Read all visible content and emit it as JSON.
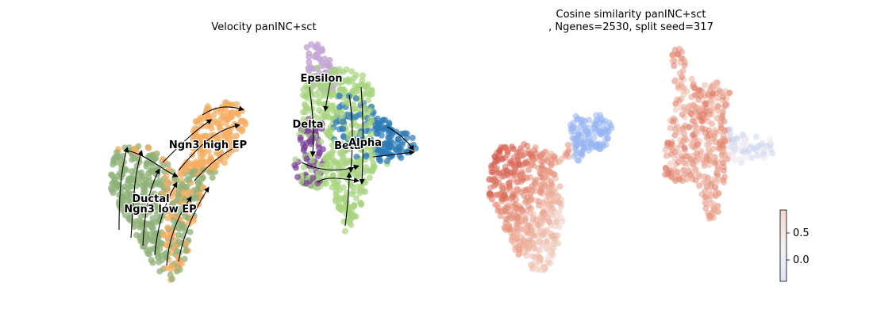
{
  "panels": {
    "left": {
      "title": "Velocity panINC+sct"
    },
    "right": {
      "title_line1": "Cosine similarity panINC+sct",
      "title_line2": ", Ngenes=2530, split seed=317"
    }
  },
  "chart_data": [
    {
      "type": "scatter",
      "title": "Velocity panINC+sct",
      "xlabel": "",
      "ylabel": "",
      "embedding": "UMAP with RNA velocity streamlines",
      "grid": false,
      "legend": "on-data labels",
      "cluster_labels": [
        {
          "name": "Ductal",
          "color": "#8fb27a"
        },
        {
          "name": "Ngn3 low EP",
          "color": "#8fb27a"
        },
        {
          "name": "Ngn3 high EP",
          "color": "#f4ad62"
        },
        {
          "name": "Epsilon",
          "color": "#c4a6d4"
        },
        {
          "name": "Delta",
          "color": "#7b3f99"
        },
        {
          "name": "Beta",
          "color": "#a8d47f"
        },
        {
          "name": "Alpha",
          "color": "#2c7bb6"
        }
      ]
    },
    {
      "type": "scatter",
      "title": "Cosine similarity panINC+sct\n, Ngenes=2530, split seed=317",
      "xlabel": "",
      "ylabel": "",
      "color_scale": "coolwarm",
      "colorbar": {
        "ticks": [
          "0.5",
          "0.0"
        ],
        "min": -0.4,
        "max": 0.9,
        "low_color": "#dde4f6",
        "high_color": "#f4d8cc"
      }
    }
  ]
}
